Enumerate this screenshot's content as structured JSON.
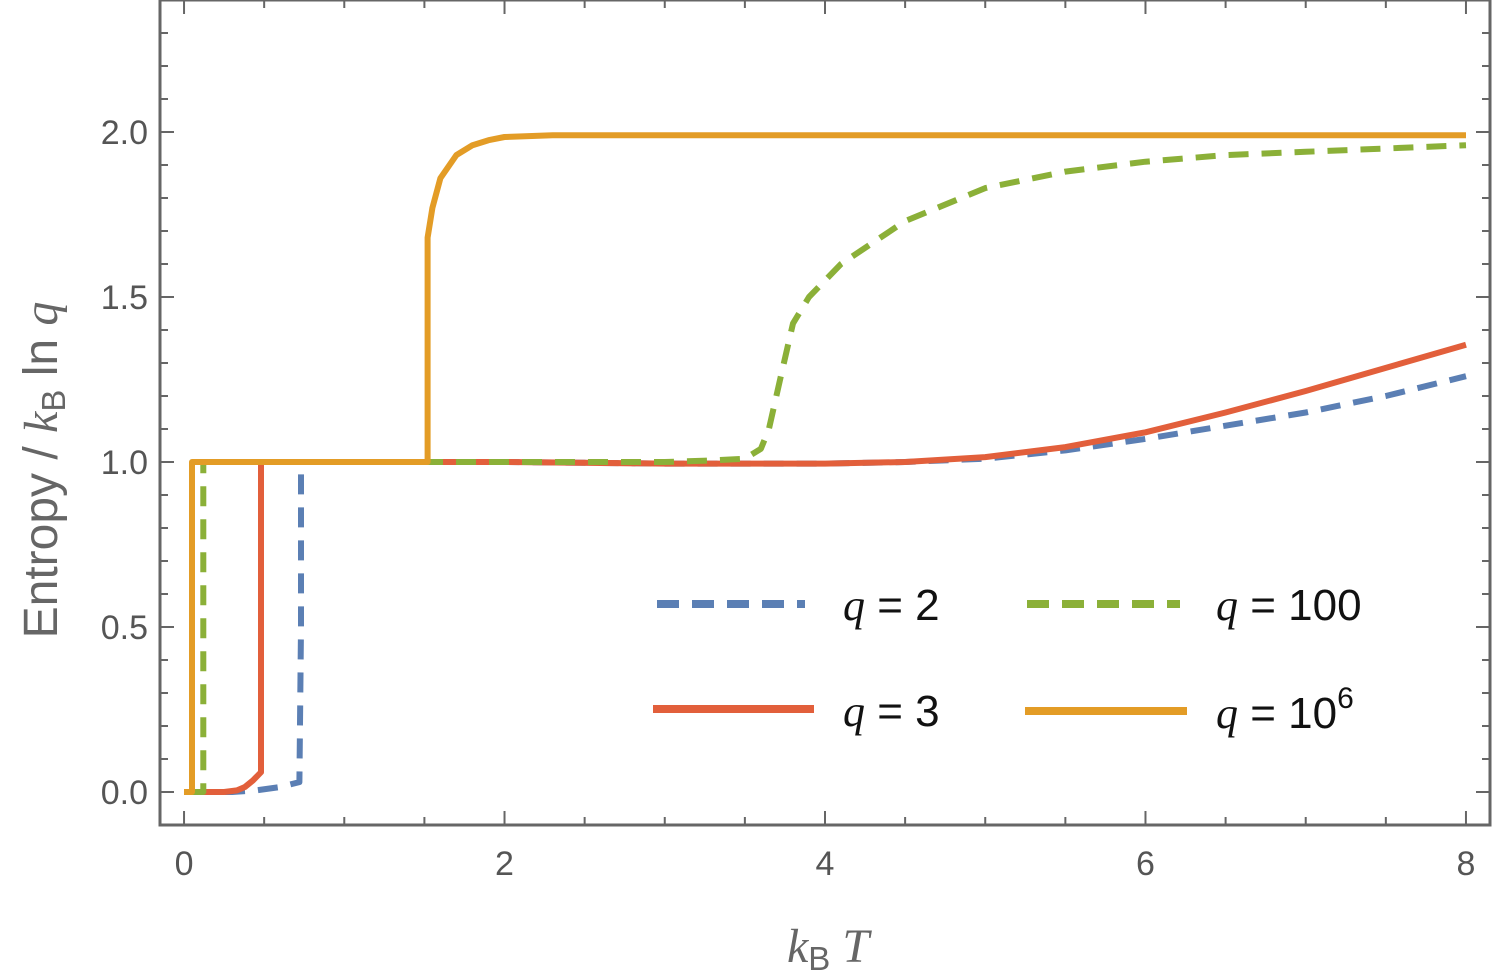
{
  "chart_data": {
    "type": "line",
    "xlabel": {
      "k": "k",
      "sub": "B",
      "var": "T"
    },
    "ylabel": {
      "prefix": "Entropy / ",
      "k": "k",
      "sub": "B",
      "ln": " ln ",
      "var": "q"
    },
    "xlim": [
      -0.15,
      8.15
    ],
    "ylim": [
      -0.1,
      2.4
    ],
    "x_ticks": [
      0,
      2,
      4,
      6,
      8
    ],
    "x_tick_labels": [
      "0",
      "2",
      "4",
      "6",
      "8"
    ],
    "y_ticks": [
      0.0,
      0.5,
      1.0,
      1.5,
      2.0
    ],
    "y_tick_labels": [
      "0.0",
      "0.5",
      "1.0",
      "1.5",
      "2.0"
    ],
    "grid": false,
    "legend_position": "bottom-right",
    "series": [
      {
        "name": "q = 2",
        "legend": {
          "var": "q",
          "rel": " = 2",
          "exp": ""
        },
        "color": "#5B7FB4",
        "dash": "dashed",
        "x": [
          0.05,
          0.3,
          0.45,
          0.6,
          0.72,
          0.73,
          0.73,
          1.0,
          2.0,
          3.0,
          4.0,
          4.5,
          5.0,
          5.5,
          6.0,
          6.5,
          7.0,
          7.5,
          8.0
        ],
        "y": [
          0.0,
          0.0,
          0.005,
          0.015,
          0.03,
          0.5,
          1.0,
          1.0,
          1.0,
          0.995,
          0.995,
          1.0,
          1.01,
          1.035,
          1.07,
          1.11,
          1.15,
          1.2,
          1.26
        ]
      },
      {
        "name": "q = 3",
        "legend": {
          "var": "q",
          "rel": " = 3",
          "exp": ""
        },
        "color": "#E25F3B",
        "dash": "solid",
        "x": [
          0.05,
          0.25,
          0.33,
          0.38,
          0.43,
          0.48,
          0.48,
          0.48,
          1.0,
          2.0,
          3.0,
          4.0,
          4.5,
          5.0,
          5.5,
          6.0,
          6.5,
          7.0,
          7.5,
          8.0
        ],
        "y": [
          0.0,
          0.0,
          0.005,
          0.015,
          0.035,
          0.06,
          0.5,
          1.0,
          1.0,
          1.0,
          0.995,
          0.995,
          1.0,
          1.015,
          1.045,
          1.09,
          1.15,
          1.215,
          1.285,
          1.355
        ]
      },
      {
        "name": "q = 100",
        "legend": {
          "var": "q",
          "rel": " = 100",
          "exp": ""
        },
        "color": "#8BB038",
        "dash": "dashed",
        "x": [
          0.05,
          0.12,
          0.12,
          0.12,
          1.0,
          2.0,
          3.0,
          3.3,
          3.5,
          3.6,
          3.65,
          3.72,
          3.8,
          3.9,
          4.1,
          4.5,
          5.0,
          5.5,
          6.0,
          6.5,
          7.0,
          7.5,
          8.0
        ],
        "y": [
          0.0,
          0.0,
          0.5,
          1.0,
          1.0,
          1.0,
          1.0,
          1.005,
          1.01,
          1.04,
          1.1,
          1.25,
          1.42,
          1.5,
          1.6,
          1.73,
          1.83,
          1.88,
          1.91,
          1.93,
          1.94,
          1.95,
          1.96
        ]
      },
      {
        "name": "q = 10⁶",
        "legend": {
          "var": "q",
          "rel": " = 10",
          "exp": "6"
        },
        "color": "#E39C26",
        "dash": "solid",
        "x": [
          0.0,
          0.05,
          0.05,
          0.5,
          1.0,
          1.52,
          1.52,
          1.55,
          1.6,
          1.7,
          1.8,
          1.9,
          2.0,
          2.3,
          2.6,
          3.0,
          4.0,
          5.0,
          6.0,
          7.0,
          8.0
        ],
        "y": [
          0.0,
          0.0,
          1.0,
          1.0,
          1.0,
          1.0,
          1.68,
          1.77,
          1.86,
          1.93,
          1.96,
          1.975,
          1.985,
          1.99,
          1.99,
          1.99,
          1.99,
          1.99,
          1.99,
          1.99,
          1.99
        ]
      }
    ]
  }
}
